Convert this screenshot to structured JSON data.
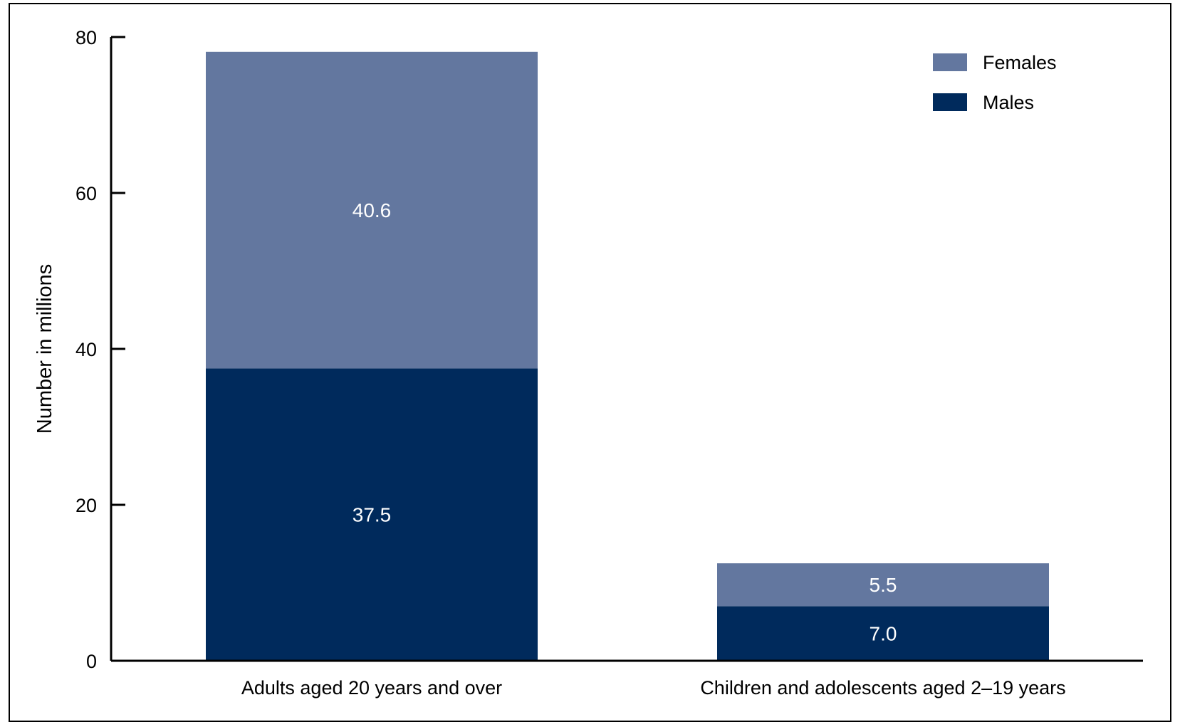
{
  "chart_data": {
    "type": "bar",
    "stacked": true,
    "categories": [
      "Adults aged 20 years and over",
      "Children and adolescents aged 2–19 years"
    ],
    "series": [
      {
        "name": "Males",
        "values": [
          37.5,
          7.0
        ],
        "labels": [
          "37.5",
          "7.0"
        ],
        "color": "#002a5c"
      },
      {
        "name": "Females",
        "values": [
          40.6,
          5.5
        ],
        "labels": [
          "40.6",
          "5.5"
        ],
        "color": "#63779f"
      }
    ],
    "legend_order": [
      "Females",
      "Males"
    ],
    "title": "",
    "xlabel": "",
    "ylabel": "Number in millions",
    "ylim": [
      0,
      80
    ],
    "yticks": [
      "0",
      "20",
      "40",
      "60",
      "80"
    ],
    "grid": false,
    "legend_position": "top-right",
    "data_label_color": "#ffffff"
  }
}
